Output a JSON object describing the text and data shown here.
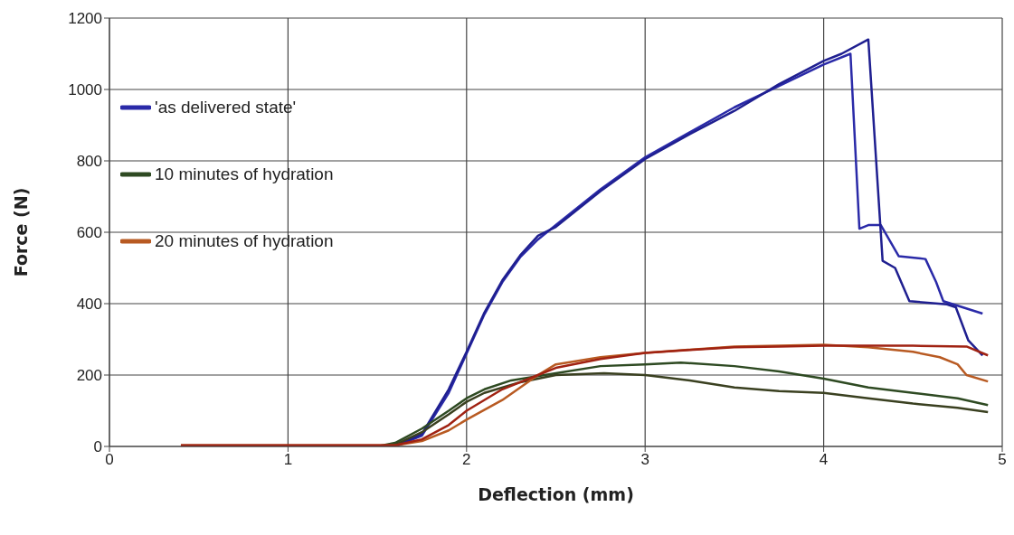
{
  "chart_data": {
    "type": "line",
    "xlabel": "Deflection (mm)",
    "ylabel": "Force (N)",
    "xlim": [
      0,
      5
    ],
    "xticks": [
      0,
      1,
      2,
      3,
      4,
      5
    ],
    "ylim": [
      0,
      1200
    ],
    "yticks": [
      0,
      200,
      400,
      600,
      800,
      1000,
      1200
    ],
    "grid": true,
    "legend": "left",
    "marker": "none",
    "line_style": "solid",
    "series": [
      {
        "name": "'as delivered state'",
        "color": "#2a2aa8",
        "x": [
          1.6,
          1.75,
          1.9,
          2.0,
          2.1,
          2.2,
          2.3,
          2.4,
          2.5,
          2.75,
          3.0,
          3.25,
          3.5,
          3.75,
          4.0,
          4.15,
          4.2,
          4.25,
          4.32,
          4.42,
          4.57,
          4.63,
          4.67,
          4.89
        ],
        "values": [
          0,
          30,
          150,
          260,
          370,
          460,
          530,
          580,
          620,
          720,
          810,
          880,
          950,
          1010,
          1070,
          1100,
          610,
          620,
          620,
          533,
          525,
          460,
          407,
          372
        ]
      },
      {
        "color": "#1f1f90",
        "x": [
          1.6,
          1.75,
          1.9,
          2.0,
          2.1,
          2.2,
          2.3,
          2.4,
          2.5,
          2.75,
          3.0,
          3.25,
          3.5,
          3.75,
          4.0,
          4.1,
          4.25,
          4.33,
          4.4,
          4.48,
          4.69,
          4.74,
          4.81,
          4.89
        ],
        "values": [
          0,
          35,
          160,
          265,
          375,
          465,
          535,
          590,
          615,
          715,
          805,
          875,
          940,
          1015,
          1080,
          1100,
          1140,
          520,
          500,
          407,
          398,
          390,
          297,
          255
        ]
      },
      {
        "name": "10 minutes of hydration",
        "color": "#2e4a22",
        "x": [
          1.5,
          1.6,
          1.75,
          1.9,
          2.0,
          2.1,
          2.25,
          2.5,
          2.75,
          3.0,
          3.2,
          3.5,
          3.75,
          4.0,
          4.25,
          4.5,
          4.75,
          4.92
        ],
        "values": [
          0,
          10,
          50,
          100,
          135,
          160,
          185,
          205,
          225,
          230,
          235,
          225,
          210,
          190,
          165,
          150,
          135,
          116
        ]
      },
      {
        "color": "#3a4020",
        "x": [
          1.5,
          1.6,
          1.75,
          1.9,
          2.0,
          2.1,
          2.3,
          2.5,
          2.77,
          3.0,
          3.25,
          3.5,
          3.75,
          4.0,
          4.25,
          4.5,
          4.75,
          4.92
        ],
        "values": [
          0,
          5,
          40,
          90,
          125,
          150,
          180,
          200,
          205,
          200,
          185,
          165,
          155,
          150,
          135,
          120,
          108,
          96
        ]
      },
      {
        "name": "20 minutes of hydration",
        "color": "#b85a22",
        "x": [
          0.4,
          1.0,
          1.6,
          1.75,
          1.9,
          2.0,
          2.2,
          2.4,
          2.5,
          2.75,
          3.0,
          3.5,
          4.0,
          4.25,
          4.5,
          4.65,
          4.75,
          4.8,
          4.92
        ],
        "values": [
          3,
          3,
          3,
          15,
          45,
          75,
          130,
          200,
          230,
          250,
          262,
          280,
          285,
          278,
          265,
          250,
          230,
          200,
          182
        ]
      },
      {
        "color": "#a02212",
        "x": [
          0.4,
          1.0,
          1.6,
          1.75,
          1.9,
          2.0,
          2.2,
          2.4,
          2.5,
          2.75,
          3.0,
          3.25,
          3.5,
          3.75,
          4.0,
          4.5,
          4.8,
          4.92
        ],
        "values": [
          3,
          3,
          3,
          20,
          60,
          100,
          160,
          200,
          220,
          245,
          262,
          270,
          278,
          280,
          282,
          282,
          280,
          255
        ]
      }
    ]
  }
}
